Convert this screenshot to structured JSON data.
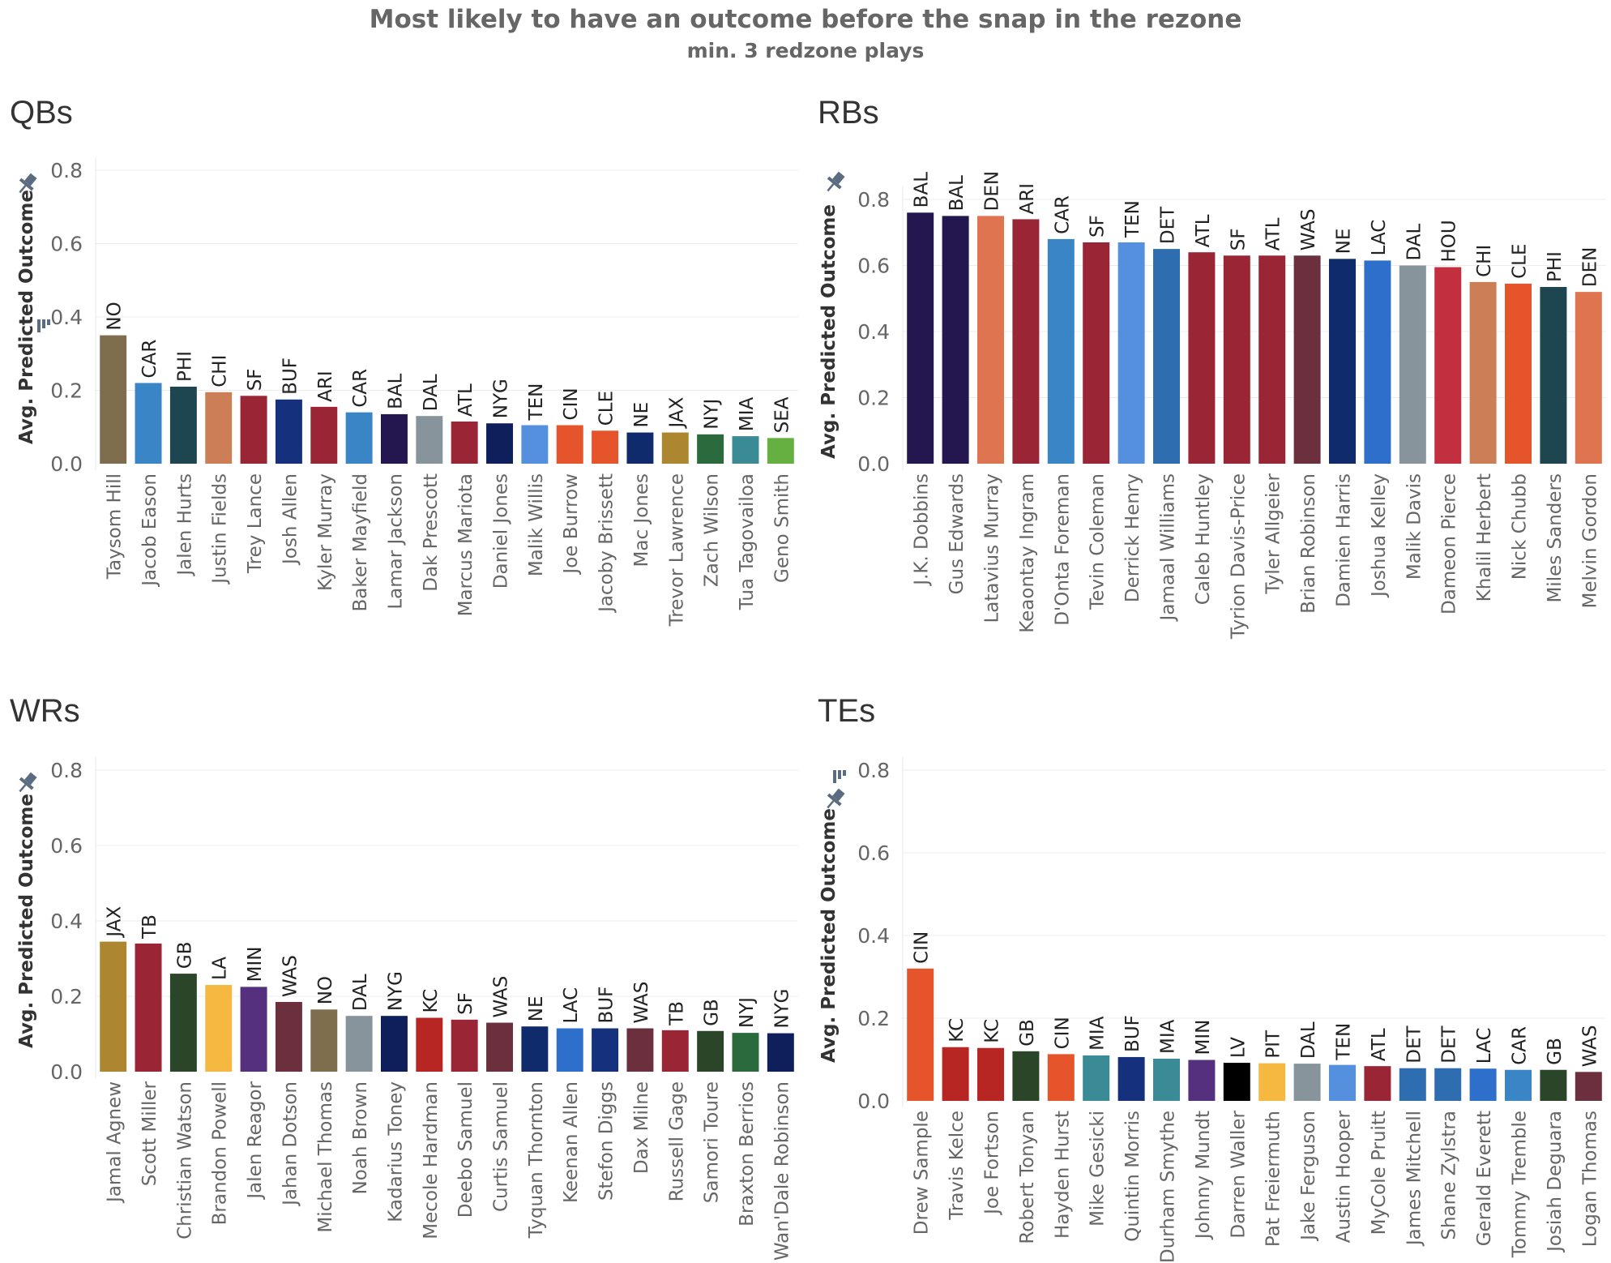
{
  "title": "Most likely to have an outcome before the snap in the rezone",
  "subtitle": "min. 3 redzone plays",
  "team_colors": {
    "NO": "#7f6e4e",
    "CAR": "#3a85c6",
    "PHI": "#1d4650",
    "CHI": "#cc7f57",
    "SF": "#9a2535",
    "BUF": "#15307d",
    "ARI": "#9a2535",
    "BAL": "#24174f",
    "DAL": "#87949c",
    "ATL": "#9a2535",
    "NYG": "#0e1f5c",
    "TEN": "#5590de",
    "CIN": "#e5542a",
    "CLE": "#e5542a",
    "NE": "#0f2b6b",
    "JAX": "#ad8730",
    "NYJ": "#2a6a3c",
    "MIA": "#3a8b95",
    "SEA": "#65b040",
    "DEN": "#de7550",
    "DET": "#2e6daf",
    "WAS": "#6c2f3d",
    "LAC": "#2e6fcb",
    "HOU": "#c2303f",
    "TB": "#9a2535",
    "GB": "#2b4528",
    "LA": "#f5b942",
    "MIN": "#54307e",
    "KC": "#b82623",
    "LV": "#000000",
    "PIT": "#f5b942"
  },
  "chart_data": [
    {
      "type": "bar",
      "title": "QBs",
      "ylabel": "Avg. Predicted Outcome",
      "ylim": [
        0,
        0.8
      ],
      "yticks": [
        "0.0",
        "0.2",
        "0.4",
        "0.6",
        "0.8"
      ],
      "categories": [
        "Taysom Hill",
        "Jacob Eason",
        "Jalen Hurts",
        "Justin Fields",
        "Trey Lance",
        "Josh Allen",
        "Kyler Murray",
        "Baker Mayfield",
        "Lamar Jackson",
        "Dak Prescott",
        "Marcus Mariota",
        "Daniel Jones",
        "Malik Willis",
        "Joe Burrow",
        "Jacoby Brissett",
        "Mac Jones",
        "Trevor Lawrence",
        "Zach Wilson",
        "Tua Tagovailoa",
        "Geno Smith"
      ],
      "teams": [
        "NO",
        "CAR",
        "PHI",
        "CHI",
        "SF",
        "BUF",
        "ARI",
        "CAR",
        "BAL",
        "DAL",
        "ATL",
        "NYG",
        "TEN",
        "CIN",
        "CLE",
        "NE",
        "JAX",
        "NYJ",
        "MIA",
        "SEA"
      ],
      "values": [
        0.35,
        0.22,
        0.21,
        0.195,
        0.185,
        0.175,
        0.155,
        0.14,
        0.135,
        0.13,
        0.115,
        0.11,
        0.105,
        0.105,
        0.09,
        0.085,
        0.085,
        0.08,
        0.075,
        0.07
      ]
    },
    {
      "type": "bar",
      "title": "RBs",
      "ylabel": "Avg. Predicted Outcome",
      "ylim": [
        0,
        0.8
      ],
      "yticks": [
        "0.0",
        "0.2",
        "0.4",
        "0.6",
        "0.8"
      ],
      "categories": [
        "J.K. Dobbins",
        "Gus Edwards",
        "Latavius Murray",
        "Keaontay Ingram",
        "D'Onta Foreman",
        "Tevin Coleman",
        "Derrick Henry",
        "Jamaal Williams",
        "Caleb Huntley",
        "Tyrion Davis-Price",
        "Tyler Allgeier",
        "Brian Robinson",
        "Damien Harris",
        "Joshua Kelley",
        "Malik Davis",
        "Dameon Pierce",
        "Khalil Herbert",
        "Nick Chubb",
        "Miles Sanders",
        "Melvin Gordon"
      ],
      "teams": [
        "BAL",
        "BAL",
        "DEN",
        "ARI",
        "CAR",
        "SF",
        "TEN",
        "DET",
        "ATL",
        "SF",
        "ATL",
        "WAS",
        "NE",
        "LAC",
        "DAL",
        "HOU",
        "CHI",
        "CLE",
        "PHI",
        "DEN"
      ],
      "values": [
        0.76,
        0.75,
        0.75,
        0.74,
        0.68,
        0.67,
        0.67,
        0.65,
        0.64,
        0.63,
        0.63,
        0.63,
        0.62,
        0.615,
        0.6,
        0.595,
        0.55,
        0.545,
        0.535,
        0.52
      ]
    },
    {
      "type": "bar",
      "title": "WRs",
      "ylabel": "Avg. Predicted Outcome",
      "ylim": [
        0,
        0.8
      ],
      "yticks": [
        "0.0",
        "0.2",
        "0.4",
        "0.6",
        "0.8"
      ],
      "categories": [
        "Jamal Agnew",
        "Scott Miller",
        "Christian Watson",
        "Brandon Powell",
        "Jalen Reagor",
        "Jahan Dotson",
        "Michael Thomas",
        "Noah Brown",
        "Kadarius Toney",
        "Mecole Hardman",
        "Deebo Samuel",
        "Curtis Samuel",
        "Tyquan Thornton",
        "Keenan Allen",
        "Stefon Diggs",
        "Dax Milne",
        "Russell Gage",
        "Samori Toure",
        "Braxton Berrios",
        "Wan'Dale Robinson"
      ],
      "teams": [
        "JAX",
        "TB",
        "GB",
        "LA",
        "MIN",
        "WAS",
        "NO",
        "DAL",
        "NYG",
        "KC",
        "SF",
        "WAS",
        "NE",
        "LAC",
        "BUF",
        "WAS",
        "TB",
        "GB",
        "NYJ",
        "NYG"
      ],
      "values": [
        0.345,
        0.34,
        0.26,
        0.23,
        0.225,
        0.185,
        0.165,
        0.148,
        0.148,
        0.143,
        0.138,
        0.13,
        0.12,
        0.115,
        0.115,
        0.115,
        0.11,
        0.108,
        0.103,
        0.102
      ]
    },
    {
      "type": "bar",
      "title": "TEs",
      "ylabel": "Avg. Predicted Outcome",
      "ylim": [
        0,
        0.8
      ],
      "yticks": [
        "0.0",
        "0.2",
        "0.4",
        "0.6",
        "0.8"
      ],
      "categories": [
        "Drew Sample",
        "Travis Kelce",
        "Joe Fortson",
        "Robert Tonyan",
        "Hayden Hurst",
        "Mike Gesicki",
        "Quintin Morris",
        "Durham Smythe",
        "Johnny Mundt",
        "Darren Waller",
        "Pat Freiermuth",
        "Jake Ferguson",
        "Austin Hooper",
        "MyCole Pruitt",
        "James Mitchell",
        "Shane Zylstra",
        "Gerald Everett",
        "Tommy Tremble",
        "Josiah Deguara",
        "Logan Thomas"
      ],
      "teams": [
        "CIN",
        "KC",
        "KC",
        "GB",
        "CIN",
        "MIA",
        "BUF",
        "MIA",
        "MIN",
        "LV",
        "PIT",
        "DAL",
        "TEN",
        "ATL",
        "DET",
        "DET",
        "LAC",
        "CAR",
        "GB",
        "WAS"
      ],
      "values": [
        0.32,
        0.13,
        0.128,
        0.12,
        0.113,
        0.11,
        0.106,
        0.102,
        0.099,
        0.092,
        0.091,
        0.09,
        0.087,
        0.084,
        0.079,
        0.079,
        0.078,
        0.075,
        0.075,
        0.07
      ]
    }
  ]
}
